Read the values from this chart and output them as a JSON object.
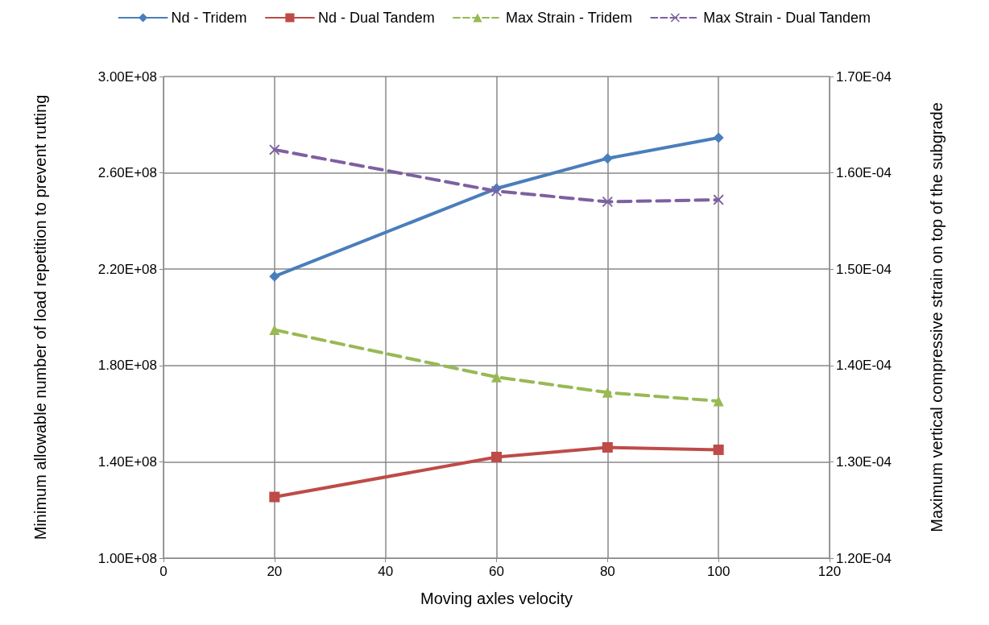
{
  "chart_data": {
    "type": "line",
    "xlabel": "Moving axles velocity",
    "ylabel": "Minimum allowable number of load repetition to prevent rutting",
    "y2label": "Maximum vertical compressive strain on top of the subgrade",
    "x": [
      20,
      60,
      80,
      100
    ],
    "series": [
      {
        "name": "Nd - Tridem",
        "color": "#4a7ebb",
        "values": [
          217000000,
          253500000,
          266000000,
          274600000
        ],
        "marker": "diamond",
        "line_style": "solid"
      },
      {
        "name": "Nd - Dual Tandem",
        "color": "#be4b48",
        "values": [
          125400000,
          142000000,
          146000000,
          145000000
        ],
        "marker": "square",
        "line_style": "solid"
      },
      {
        "name": "Max Strain - Tridem",
        "color": "#98b954",
        "values": [
          0.0001437,
          0.0001388,
          0.0001372,
          0.0001363
        ],
        "marker": "triangle",
        "line_style": "dashed",
        "axis": "y2"
      },
      {
        "name": "Max Strain - Dual Tandem",
        "color": "#7d60a0",
        "values": [
          0.0001624,
          0.0001581,
          0.000157,
          0.0001572
        ],
        "marker": "cross",
        "line_style": "dashed",
        "axis": "y2"
      }
    ],
    "xlim": [
      0,
      120
    ],
    "xticks": [
      0,
      20,
      40,
      60,
      80,
      100,
      120
    ],
    "ylim": [
      100000000,
      300000000
    ],
    "yticks": [
      {
        "value": 100000000,
        "label": "1.00E+08"
      },
      {
        "value": 140000000,
        "label": "1.40E+08"
      },
      {
        "value": 180000000,
        "label": "1.80E+08"
      },
      {
        "value": 220000000,
        "label": "2.20E+08"
      },
      {
        "value": 260000000,
        "label": "2.60E+08"
      },
      {
        "value": 300000000,
        "label": "3.00E+08"
      }
    ],
    "y2lim": [
      0.00012,
      0.00017
    ],
    "y2ticks": [
      {
        "value": 0.00012,
        "label": "1.20E-04"
      },
      {
        "value": 0.00013,
        "label": "1.30E-04"
      },
      {
        "value": 0.00014,
        "label": "1.40E-04"
      },
      {
        "value": 0.00015,
        "label": "1.50E-04"
      },
      {
        "value": 0.00016,
        "label": "1.60E-04"
      },
      {
        "value": 0.00017,
        "label": "1.70E-04"
      }
    ],
    "grid": true,
    "legend": "top"
  }
}
